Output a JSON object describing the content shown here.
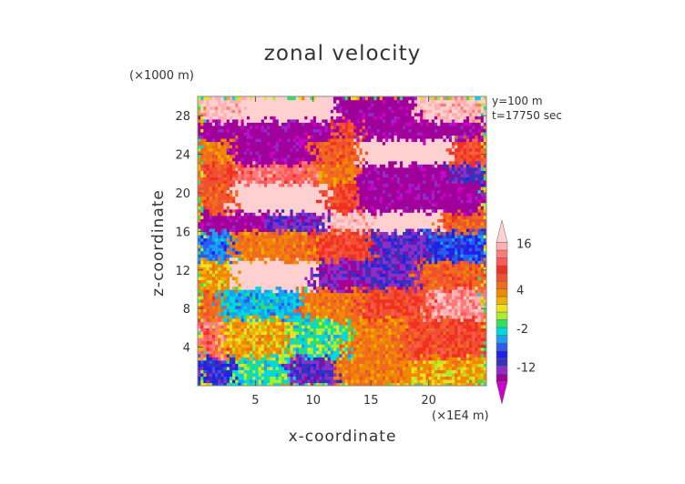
{
  "chart_data": {
    "type": "heatmap",
    "title": "zonal velocity",
    "xlabel": "x-coordinate",
    "ylabel": "z-coordinate",
    "x_multiplier_label": "(×1E4 m)",
    "y_multiplier_label": "(×1000 m)",
    "annotations": [
      "y=100 m",
      "t=17750 sec"
    ],
    "xlim": [
      0,
      25
    ],
    "ylim": [
      0,
      30
    ],
    "x_ticks": [
      5,
      10,
      15,
      20
    ],
    "y_ticks": [
      4,
      8,
      12,
      16,
      20,
      24,
      28
    ],
    "colorbar": {
      "labels": [
        16,
        4,
        -2,
        -12
      ],
      "levels": [
        -18,
        -14,
        -12,
        -10,
        -8,
        -6,
        -4,
        -2,
        -1,
        0,
        1,
        2,
        4,
        6,
        8,
        10,
        12,
        14,
        16,
        20
      ],
      "colors": [
        "#cc00cc",
        "#a00099",
        "#8e2dc9",
        "#3333bb",
        "#2020e8",
        "#2a5cf0",
        "#1aa0f0",
        "#00d8e0",
        "#30e060",
        "#a8ee30",
        "#f0e020",
        "#f0b000",
        "#f08800",
        "#f06a20",
        "#f05030",
        "#f03020",
        "#ff5858",
        "#ff7a7a",
        "#ffb0b0",
        "#ffd0d0"
      ]
    },
    "field_description_rows_top_to_bottom": [
      {
        "z_range": [
          27.5,
          30
        ],
        "x_segments": [
          [
            0,
            4,
            16
          ],
          [
            4,
            12,
            20
          ],
          [
            12,
            19,
            -16
          ],
          [
            19,
            25,
            16
          ]
        ]
      },
      {
        "z_range": [
          25.5,
          27.5
        ],
        "x_segments": [
          [
            0,
            6,
            -16
          ],
          [
            6,
            12,
            -16
          ],
          [
            12,
            14,
            8
          ],
          [
            14,
            25,
            -16
          ]
        ]
      },
      {
        "z_range": [
          23,
          25.5
        ],
        "x_segments": [
          [
            0,
            3,
            4
          ],
          [
            3,
            10,
            -16
          ],
          [
            10,
            14,
            6
          ],
          [
            14,
            22,
            20
          ],
          [
            22,
            25,
            8
          ]
        ]
      },
      {
        "z_range": [
          21,
          23
        ],
        "x_segments": [
          [
            0,
            3,
            8
          ],
          [
            3,
            10,
            12
          ],
          [
            10,
            14,
            4
          ],
          [
            14,
            22,
            -16
          ],
          [
            22,
            25,
            -12
          ]
        ]
      },
      {
        "z_range": [
          18,
          21
        ],
        "x_segments": [
          [
            0,
            3,
            6
          ],
          [
            3,
            11,
            20
          ],
          [
            11,
            14,
            8
          ],
          [
            14,
            25,
            -16
          ]
        ]
      },
      {
        "z_range": [
          16,
          18
        ],
        "x_segments": [
          [
            0,
            6,
            -16
          ],
          [
            6,
            11,
            -12
          ],
          [
            11,
            15,
            16
          ],
          [
            15,
            21,
            20
          ],
          [
            21,
            25,
            6
          ]
        ]
      },
      {
        "z_range": [
          13,
          16
        ],
        "x_segments": [
          [
            0,
            3,
            -6
          ],
          [
            3,
            10,
            4
          ],
          [
            10,
            15,
            8
          ],
          [
            15,
            20,
            -12
          ],
          [
            20,
            25,
            -8
          ]
        ]
      },
      {
        "z_range": [
          10,
          13
        ],
        "x_segments": [
          [
            0,
            3,
            2
          ],
          [
            3,
            10,
            20
          ],
          [
            10,
            14,
            -14
          ],
          [
            14,
            19,
            -12
          ],
          [
            19,
            25,
            6
          ]
        ]
      },
      {
        "z_range": [
          7,
          10
        ],
        "x_segments": [
          [
            0,
            2,
            6
          ],
          [
            2,
            9,
            -4
          ],
          [
            9,
            14,
            4
          ],
          [
            14,
            20,
            8
          ],
          [
            20,
            25,
            14
          ]
        ]
      },
      {
        "z_range": [
          3,
          7
        ],
        "x_segments": [
          [
            0,
            2,
            12
          ],
          [
            2,
            8,
            2
          ],
          [
            8,
            13,
            -2
          ],
          [
            13,
            18,
            4
          ],
          [
            18,
            25,
            8
          ]
        ]
      },
      {
        "z_range": [
          0,
          3
        ],
        "x_segments": [
          [
            0,
            3,
            -10
          ],
          [
            3,
            8,
            -2
          ],
          [
            8,
            12,
            -12
          ],
          [
            12,
            18,
            4
          ],
          [
            18,
            25,
            2
          ]
        ]
      }
    ]
  }
}
